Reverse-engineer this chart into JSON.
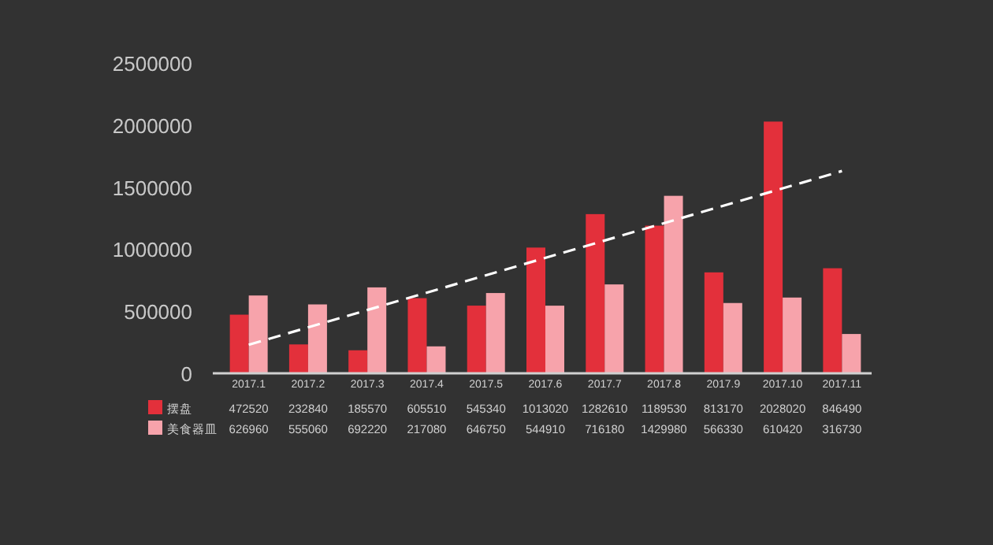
{
  "chart_data": {
    "type": "bar",
    "categories": [
      "2017.1",
      "2017.2",
      "2017.3",
      "2017.4",
      "2017.5",
      "2017.6",
      "2017.7",
      "2017.8",
      "2017.9",
      "2017.10",
      "2017.11"
    ],
    "series": [
      {
        "name": "摆盘",
        "color": "#e3303b",
        "values": [
          472520,
          232840,
          185570,
          605510,
          545340,
          1013020,
          1282610,
          1189530,
          813170,
          2028020,
          846490
        ],
        "value_labels": [
          "472520",
          "232840",
          "185570",
          "605510",
          "545340",
          "1013020",
          "1282610",
          "1189530",
          "813170",
          "2028020",
          "846490"
        ]
      },
      {
        "name": "美食器皿",
        "color": "#f7a3ab",
        "values": [
          626960,
          555060,
          692220,
          217080,
          646750,
          544910,
          716180,
          1429980,
          566330,
          610420,
          316730
        ],
        "value_labels": [
          "626960",
          "555060",
          "692220",
          "217080",
          "646750",
          "544910",
          "716180",
          "1429980",
          "566330",
          "610420",
          "316730"
        ]
      },
      {
        "type": "line",
        "x": [
          "2017.1",
          "2017.11"
        ],
        "values": [
          230000,
          1630000
        ],
        "color": "#ffffff",
        "line_style": "dashed"
      }
    ],
    "ylim": [
      0,
      2500000
    ],
    "yticks": [
      0,
      500000,
      1000000,
      1500000,
      2000000,
      2500000
    ],
    "grid": false,
    "legend": "bottom left"
  }
}
